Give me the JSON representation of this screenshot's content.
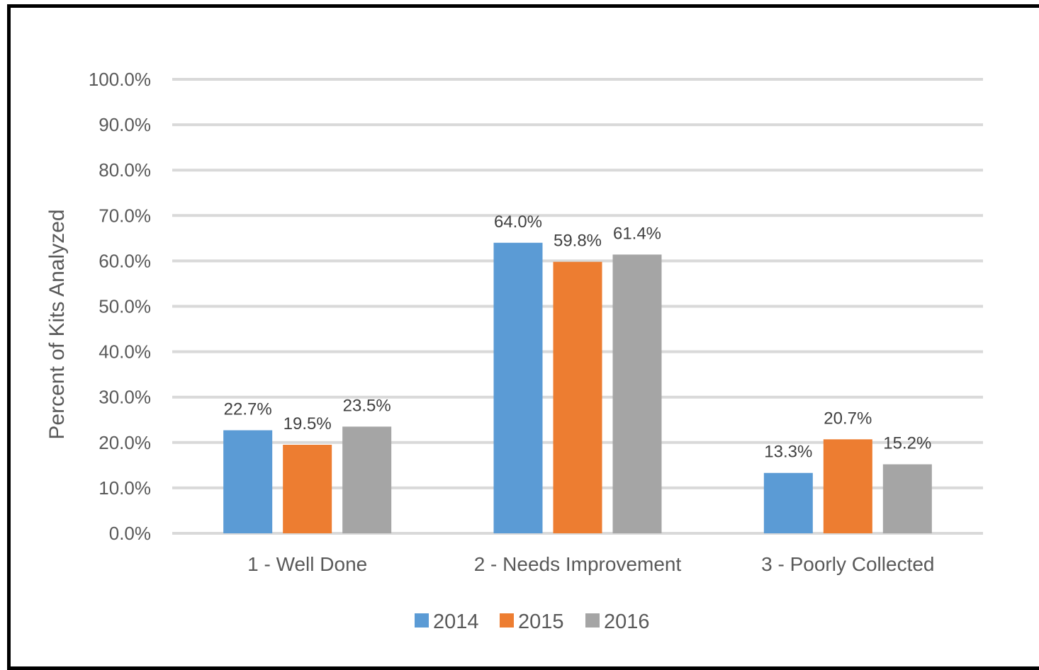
{
  "chart_data": {
    "type": "bar",
    "ylabel": "Percent of Kits Analyzed",
    "xlabel": "",
    "categories": [
      "1 - Well Done",
      "2 - Needs Improvement",
      "3 - Poorly Collected"
    ],
    "series": [
      {
        "name": "2014",
        "color": "#5b9bd5",
        "values": [
          22.7,
          64.0,
          13.3
        ],
        "labels": [
          "22.7%",
          "64.0%",
          "13.3%"
        ]
      },
      {
        "name": "2015",
        "color": "#ed7d31",
        "values": [
          19.5,
          59.8,
          20.7
        ],
        "labels": [
          "19.5%",
          "59.8%",
          "20.7%"
        ]
      },
      {
        "name": "2016",
        "color": "#a5a5a5",
        "values": [
          23.5,
          61.4,
          15.2
        ],
        "labels": [
          "23.5%",
          "61.4%",
          "15.2%"
        ]
      }
    ],
    "ylim": [
      0,
      100
    ],
    "yticks": [
      "0.0%",
      "10.0%",
      "20.0%",
      "30.0%",
      "40.0%",
      "50.0%",
      "60.0%",
      "70.0%",
      "80.0%",
      "90.0%",
      "100.0%"
    ],
    "grid": true,
    "legend_position": "bottom"
  }
}
